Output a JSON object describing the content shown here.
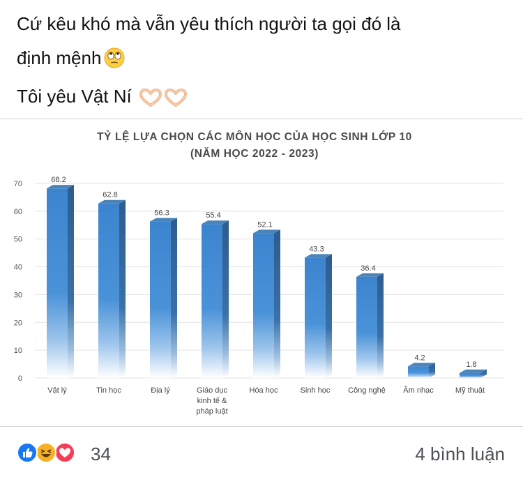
{
  "post": {
    "line1": "Cứ kêu khó mà vẫn yêu thích người ta gọi đó là",
    "line2": "định mệnh",
    "line3": "Tôi yêu Vật Ní",
    "emojis": [
      "face-with-rolling-eyes",
      "heart-hands",
      "heart-hands"
    ]
  },
  "chart_data": {
    "type": "bar",
    "title": "TỶ LỆ LỰA CHỌN CÁC MÔN HỌC CỦA HỌC SINH LỚP 10",
    "subtitle": "(NĂM HỌC 2022 - 2023)",
    "categories": [
      [
        "Vật lý"
      ],
      [
        "Tin học"
      ],
      [
        "Địa lý"
      ],
      [
        "Giáo dục",
        "kinh tế &",
        "pháp luật"
      ],
      [
        "Hóa học"
      ],
      [
        "Sinh học"
      ],
      [
        "Công nghệ"
      ],
      [
        "Âm nhạc"
      ],
      [
        "Mỹ thuật"
      ]
    ],
    "values": [
      68.2,
      62.8,
      56.3,
      55.4,
      52.1,
      43.3,
      36.4,
      4.2,
      1.8
    ],
    "value_labels": [
      "68.2",
      "62.8",
      "56.3",
      "55.4",
      "52.1",
      "43.3",
      "36.4",
      "4.2",
      "1.8"
    ],
    "yticks": [
      "0",
      "10",
      "20",
      "30",
      "40",
      "50",
      "60",
      "70"
    ],
    "ylim": [
      0,
      70
    ],
    "grid": true,
    "bar_color": "#3f86cf",
    "bar_side_color": "#2e5f93",
    "bar_top_color": "#4c84b8"
  },
  "footer": {
    "reaction_count": "34",
    "comments_label": "4 bình luận",
    "reactions": [
      "like-icon",
      "haha-icon",
      "love-icon"
    ],
    "colors": {
      "like": "#1877f2",
      "haha": "#f7b125",
      "love": "#f33e58"
    }
  }
}
